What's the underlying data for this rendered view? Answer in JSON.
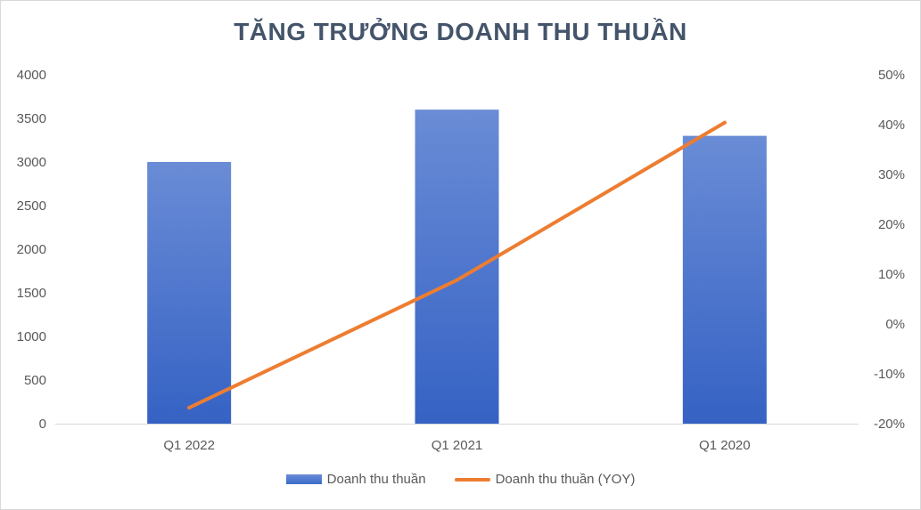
{
  "chart_data": {
    "type": "bar",
    "title": "TĂNG TRƯỞNG DOANH THU THUẦN",
    "categories": [
      "Q1 2022",
      "Q1 2021",
      "Q1 2020"
    ],
    "series": [
      {
        "name": "Doanh thu thuần",
        "type": "bar",
        "axis": "left",
        "color": "#4472c4",
        "values": [
          3000,
          3600,
          3300
        ]
      },
      {
        "name": "Doanh thu thuần (YOY)",
        "type": "line",
        "axis": "right",
        "color": "#ed7d31",
        "values": [
          -0.168,
          0.088,
          0.404
        ]
      }
    ],
    "y_left": {
      "ylim": [
        0,
        4000
      ],
      "ticks": [
        "0",
        "500",
        "1000",
        "1500",
        "2000",
        "2500",
        "3000",
        "3500",
        "4000"
      ]
    },
    "y_right": {
      "ylim": [
        -0.2,
        0.5
      ],
      "ticks": [
        "-20%",
        "-10%",
        "0%",
        "10%",
        "20%",
        "30%",
        "40%",
        "50%"
      ]
    },
    "grid": false,
    "legend": "bottom"
  }
}
